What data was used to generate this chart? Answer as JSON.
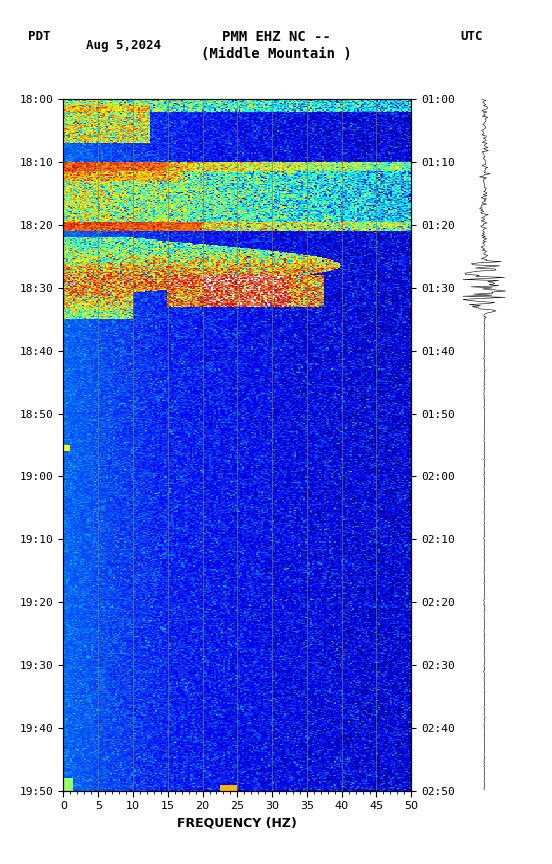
{
  "title_line1": "PMM EHZ NC --",
  "title_line2": "(Middle Mountain )",
  "title_left": "PDT",
  "title_date": "Aug 5,2024",
  "title_right": "UTC",
  "freq_min": 0,
  "freq_max": 50,
  "freq_label": "FREQUENCY (HZ)",
  "ytick_pdt": [
    "18:00",
    "18:10",
    "18:20",
    "18:30",
    "18:40",
    "18:50",
    "19:00",
    "19:10",
    "19:20",
    "19:30",
    "19:40",
    "19:50"
  ],
  "ytick_utc": [
    "01:00",
    "01:10",
    "01:20",
    "01:30",
    "01:40",
    "01:50",
    "02:00",
    "02:10",
    "02:20",
    "02:30",
    "02:40",
    "02:50"
  ],
  "xticks": [
    0,
    5,
    10,
    15,
    20,
    25,
    30,
    35,
    40,
    45,
    50
  ],
  "grid_color": "#808040",
  "fig_bg_color": "#ffffff",
  "cmap_colors": [
    [
      0.0,
      "#00008B"
    ],
    [
      0.18,
      "#0000FF"
    ],
    [
      0.32,
      "#0080FF"
    ],
    [
      0.45,
      "#00FFFF"
    ],
    [
      0.55,
      "#80FF80"
    ],
    [
      0.63,
      "#FFFF00"
    ],
    [
      0.75,
      "#FF8000"
    ],
    [
      0.88,
      "#CC0000"
    ],
    [
      1.0,
      "#FFFFFF"
    ]
  ]
}
